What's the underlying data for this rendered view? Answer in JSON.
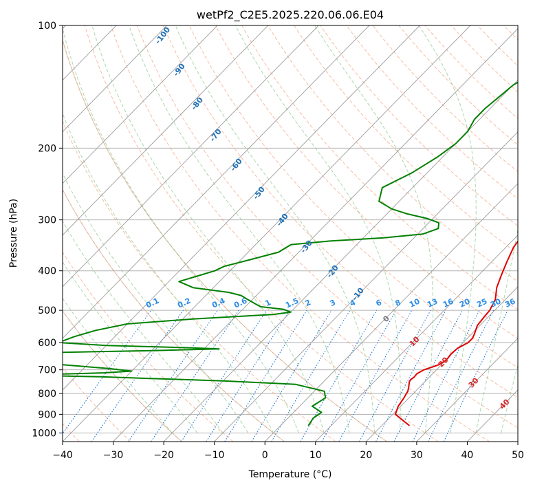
{
  "chart_data": {
    "type": "line",
    "chart_kind": "skew-T log-P diagram",
    "title": "wetPf2_C2E5.2025.220.06.06.E04",
    "xlabel": "Temperature (°C)",
    "ylabel": "Pressure (hPa)",
    "xlim": [
      -40,
      50
    ],
    "ylim": [
      1050,
      100
    ],
    "y_scale": "log",
    "x_ticks": [
      "−40",
      "−30",
      "−20",
      "−10",
      "0",
      "10",
      "20",
      "30",
      "40",
      "50"
    ],
    "x_tick_values": [
      -40,
      -30,
      -20,
      -10,
      0,
      10,
      20,
      30,
      40,
      50
    ],
    "y_ticks": [
      "100",
      "200",
      "300",
      "400",
      "500",
      "600",
      "700",
      "800",
      "900",
      "1000"
    ],
    "y_tick_values": [
      100,
      200,
      300,
      400,
      500,
      600,
      700,
      800,
      900,
      1000
    ],
    "grid": true,
    "series": [
      {
        "role": "temperature",
        "color": "#e00000",
        "p": [
          960,
          900,
          860,
          820,
          790,
          770,
          750,
          740,
          730,
          715,
          700,
          690,
          680,
          665,
          655,
          640,
          620,
          600,
          585,
          570,
          545,
          520,
          500,
          470,
          440,
          410,
          380,
          350,
          330,
          300,
          280,
          260,
          240,
          220,
          200,
          180,
          165,
          150,
          140,
          130,
          122,
          115,
          108,
          100
        ],
        "t": [
          25.5,
          20.5,
          19.5,
          19.0,
          18.5,
          17.8,
          17.0,
          16.8,
          17.0,
          16.9,
          17.5,
          18.5,
          19.5,
          20.0,
          20.0,
          19.8,
          20.0,
          21.0,
          21.0,
          20.5,
          19.5,
          19.2,
          19.0,
          18.0,
          16.0,
          14.5,
          13.0,
          11.5,
          11.0,
          9.5,
          9.0,
          7.5,
          4.0,
          1.0,
          -1.5,
          -4.5,
          -6.5,
          -9.0,
          -10.5,
          -11.5,
          -12.0,
          -12.0,
          -11.5,
          -10.0
        ]
      },
      {
        "role": "dewpoint",
        "color": "#008000",
        "p": [
          960,
          920,
          890,
          860,
          820,
          790,
          760,
          745,
          735,
          728,
          722,
          718,
          712,
          705,
          695,
          680,
          660,
          645,
          635,
          628,
          622,
          618,
          610,
          600,
          580,
          560,
          540,
          525,
          512,
          505,
          497,
          490,
          480,
          470,
          460,
          452,
          440,
          425,
          410,
          400,
          390,
          375,
          360,
          345,
          338,
          332,
          325,
          315,
          305,
          298,
          290,
          282,
          270,
          250,
          230,
          210,
          195,
          182,
          170,
          160,
          150,
          140,
          130,
          122,
          115,
          108,
          103,
          100
        ],
        "td": [
          5.5,
          5.0,
          5.5,
          2.5,
          3.5,
          2.0,
          -5.0,
          -20.0,
          -35.0,
          -45.0,
          -60.0,
          -55.0,
          -45.0,
          -40.0,
          -45.0,
          -55.0,
          -65.0,
          -75.0,
          -60.0,
          -40.0,
          -27.0,
          -33.0,
          -50.0,
          -60.0,
          -58.0,
          -55.0,
          -50.0,
          -38.0,
          -23.0,
          -20.0,
          -22.0,
          -27.0,
          -29.0,
          -31.0,
          -33.0,
          -36.0,
          -44.0,
          -48.0,
          -45.0,
          -43.0,
          -42.0,
          -38.0,
          -34.0,
          -33.0,
          -26.0,
          -16.0,
          -9.0,
          -7.0,
          -8.0,
          -11.0,
          -16.0,
          -20.0,
          -24.0,
          -26.0,
          -23.0,
          -21.0,
          -20.0,
          -20.0,
          -21.0,
          -21.0,
          -20.5,
          -20.0,
          -18.0,
          -16.0,
          -13.5,
          -9.5,
          -6.5,
          -3.5
        ]
      }
    ],
    "dry_adiabat_labels": [
      "-100",
      "-90",
      "-80",
      "-70",
      "-60",
      "-50",
      "-40",
      "-30",
      "-20",
      "-10"
    ],
    "dry_adiabat_values": [
      -100,
      -90,
      -80,
      -70,
      -60,
      -50,
      -40,
      -30,
      -20,
      -10
    ],
    "mixing_ratio_labels": [
      "0.1",
      "0.2",
      "0.4",
      "0.6",
      "1",
      "1.5",
      "2",
      "3",
      "4",
      "6",
      "8",
      "10",
      "13",
      "16",
      "20",
      "25",
      "30",
      "36"
    ],
    "mixing_ratio_values": [
      0.1,
      0.2,
      0.4,
      0.6,
      1,
      1.5,
      2,
      3,
      4,
      6,
      8,
      10,
      13,
      16,
      20,
      25,
      30,
      36
    ],
    "moist_adiabat_labels": [
      "0",
      "10",
      "20",
      "30",
      "40"
    ],
    "moist_adiabat_values": [
      0,
      10,
      20,
      30,
      40
    ],
    "colors": {
      "temperature": "#e00000",
      "dewpoint": "#008000",
      "isotherm": "#999999",
      "dry_adiabat": "#f5a582",
      "moist_adiabat": "#8fc98f",
      "mixing_ratio": "#1f77d4",
      "dry_adiabat_label": "#1f6fb5",
      "mixing_label": "#2a8ce6",
      "moist_label": "#d62a2a",
      "zero_label": "#777777",
      "background_curve": "#c9a888"
    }
  }
}
